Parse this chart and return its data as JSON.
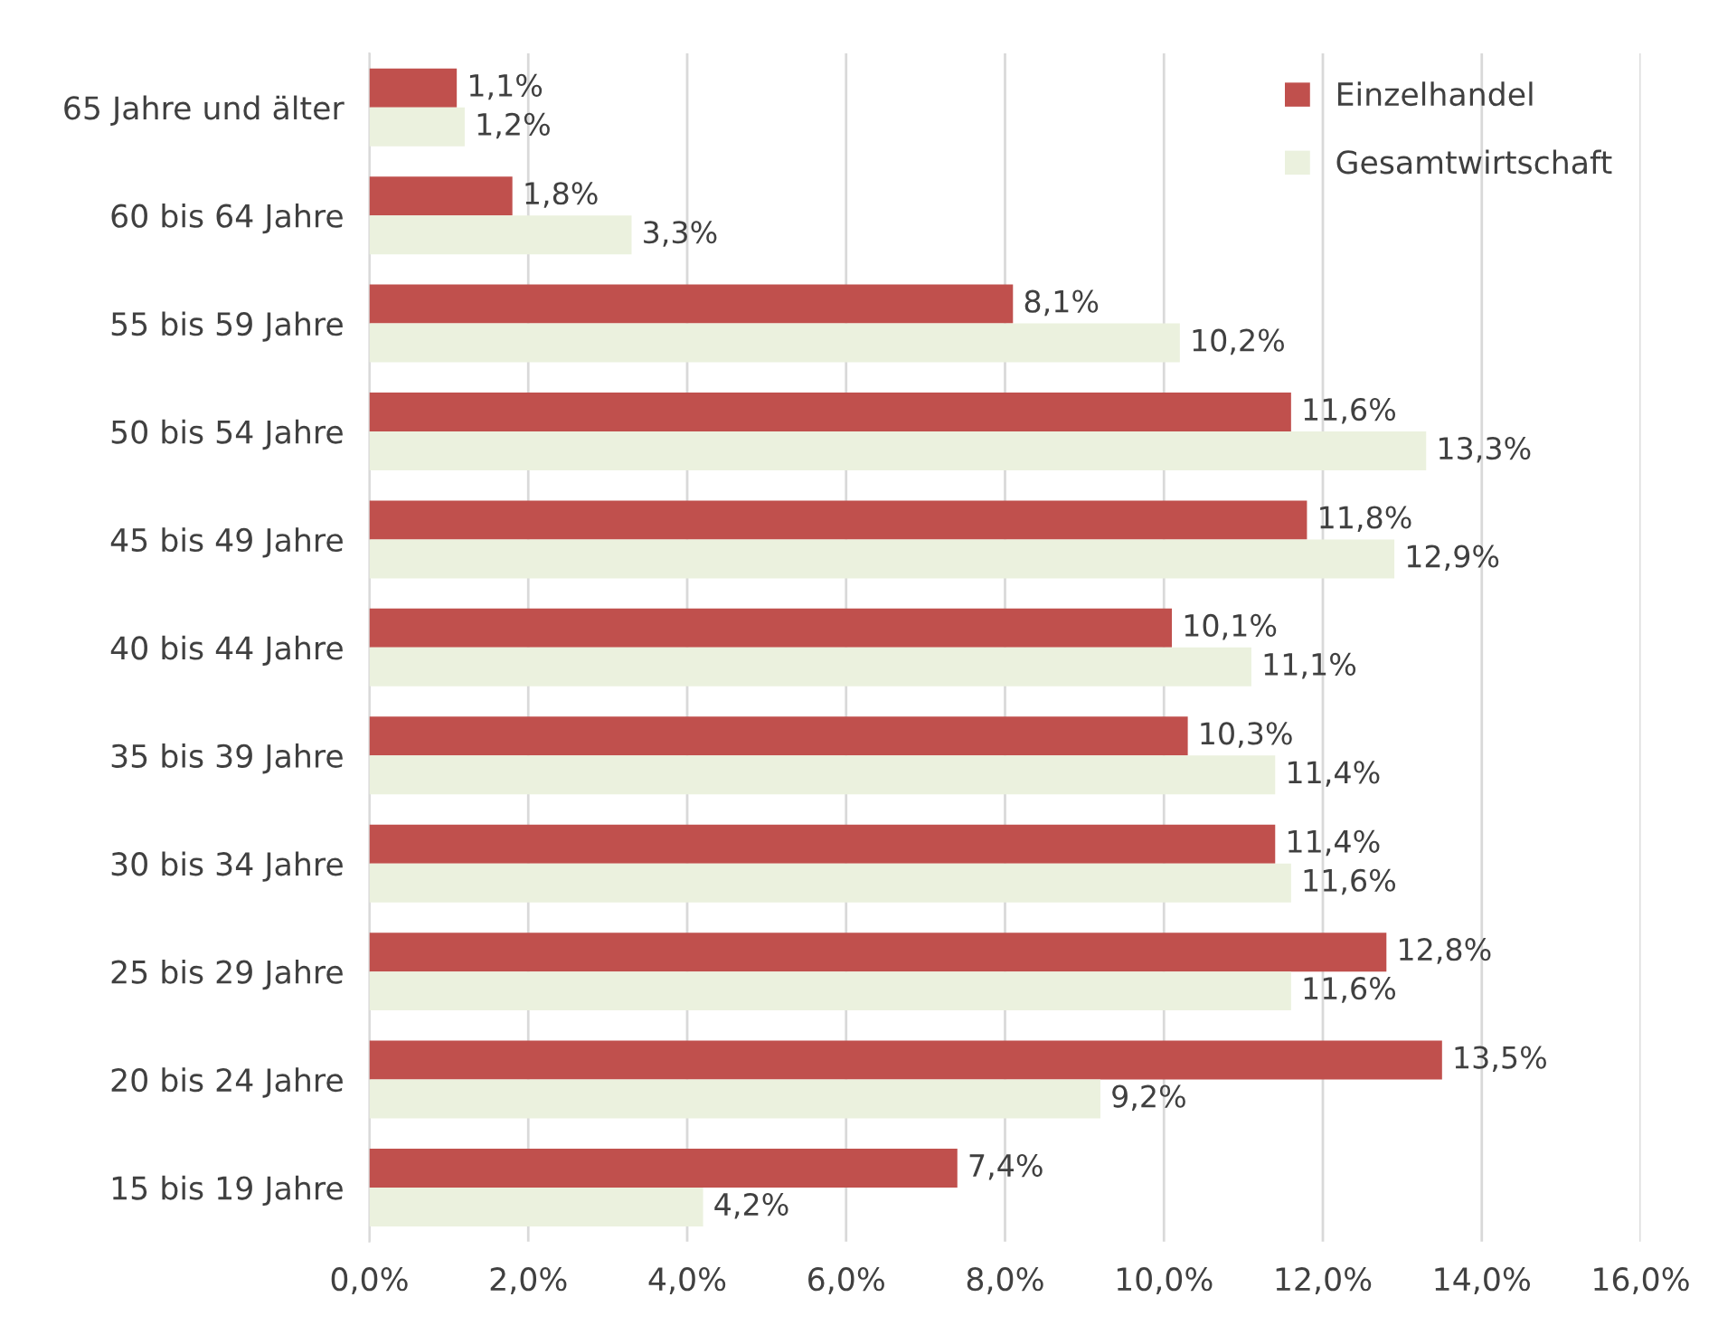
{
  "chart_data": {
    "type": "bar",
    "orientation": "horizontal",
    "categories": [
      "65 Jahre und älter",
      "60 bis 64 Jahre",
      "55 bis 59 Jahre",
      "50 bis 54 Jahre",
      "45 bis 49 Jahre",
      "40 bis 44 Jahre",
      "35 bis 39 Jahre",
      "30 bis 34 Jahre",
      "25 bis 29 Jahre",
      "20 bis 24 Jahre",
      "15 bis 19 Jahre"
    ],
    "series": [
      {
        "name": "Einzelhandel",
        "color": "#c0504d",
        "values": [
          1.1,
          1.8,
          8.1,
          11.6,
          11.8,
          10.1,
          10.3,
          11.4,
          12.8,
          13.5,
          7.4
        ],
        "value_labels": [
          "1,1%",
          "1,8%",
          "8,1%",
          "11,6%",
          "11,8%",
          "10,1%",
          "10,3%",
          "11,4%",
          "12,8%",
          "13,5%",
          "7,4%"
        ]
      },
      {
        "name": "Gesamtwirtschaft",
        "color": "#ebf1de",
        "values": [
          1.2,
          3.3,
          10.2,
          13.3,
          12.9,
          11.1,
          11.4,
          11.6,
          11.6,
          9.2,
          4.2
        ],
        "value_labels": [
          "1,2%",
          "3,3%",
          "10,2%",
          "13,3%",
          "12,9%",
          "11,1%",
          "11,4%",
          "11,6%",
          "11,6%",
          "9,2%",
          "4,2%"
        ]
      }
    ],
    "xlim": [
      0,
      16
    ],
    "xticks": [
      {
        "value": 0,
        "label": "0,0%"
      },
      {
        "value": 2,
        "label": "2,0%"
      },
      {
        "value": 4,
        "label": "4,0%"
      },
      {
        "value": 6,
        "label": "6,0%"
      },
      {
        "value": 8,
        "label": "8,0%"
      },
      {
        "value": 10,
        "label": "10,0%"
      },
      {
        "value": 12,
        "label": "12,0%"
      },
      {
        "value": 14,
        "label": "14,0%"
      },
      {
        "value": 16,
        "label": "16,0%"
      }
    ],
    "grid": "x",
    "legend": "top right"
  }
}
